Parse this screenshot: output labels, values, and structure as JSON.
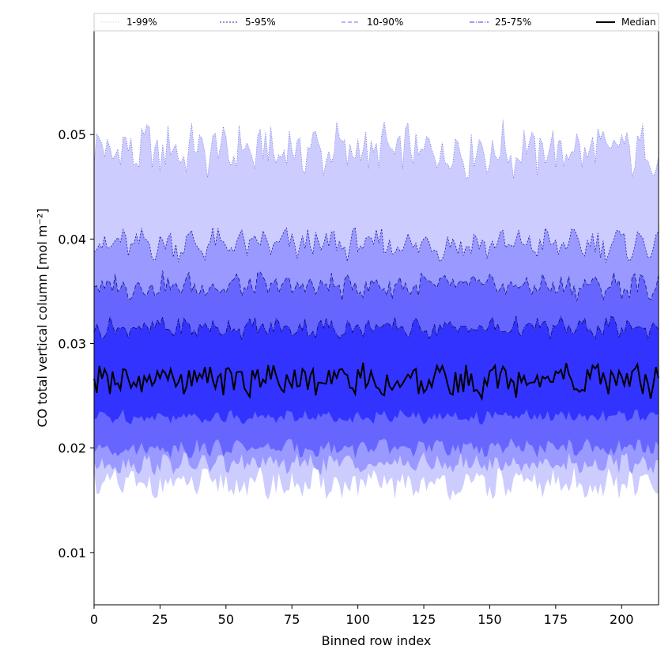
{
  "chart_data": {
    "type": "area",
    "title": "",
    "xlabel": "Binned row index",
    "ylabel": "CO total vertical column [mol m⁻²]",
    "xlim": [
      0,
      214
    ],
    "ylim": [
      0.005,
      0.06
    ],
    "x_ticks": [
      0,
      25,
      50,
      75,
      100,
      125,
      150,
      175,
      200
    ],
    "y_ticks": [
      0.01,
      0.02,
      0.03,
      0.04,
      0.05
    ],
    "x_tick_labels": [
      "0",
      "25",
      "50",
      "75",
      "100",
      "125",
      "150",
      "175",
      "200"
    ],
    "y_tick_labels": [
      "0.01",
      "0.02",
      "0.03",
      "0.04",
      "0.05"
    ],
    "grid": false,
    "legend_placement": "top",
    "legend": [
      {
        "label": "1-99%",
        "color": "#c8c8f8",
        "style": "dotted"
      },
      {
        "label": "5-95%",
        "color": "#2a2aa8",
        "style": "dotted"
      },
      {
        "label": "10-90%",
        "color": "#6c6cf0",
        "style": "dashed"
      },
      {
        "label": "25-75%",
        "color": "#3a3ae0",
        "style": "dashdot"
      },
      {
        "label": "Median",
        "color": "#000000",
        "style": "solid"
      }
    ],
    "bands": [
      {
        "name": "1-99%",
        "fill": "#ccccff",
        "line": "#6b6bd8",
        "mean_low": 0.0165,
        "mean_high": 0.0485,
        "amp_low": 0.0018,
        "amp_high": 0.003
      },
      {
        "name": "5-95%",
        "fill": "#9999ff",
        "line": "#1a1a9a",
        "mean_low": 0.0185,
        "mean_high": 0.0395,
        "amp_low": 0.0012,
        "amp_high": 0.0018
      },
      {
        "name": "10-90%",
        "fill": "#6666ff",
        "line": "#14147a",
        "mean_low": 0.02,
        "mean_high": 0.0355,
        "amp_low": 0.001,
        "amp_high": 0.0015
      },
      {
        "name": "25-75%",
        "fill": "#3333ff",
        "line": "#0a0a60",
        "mean_low": 0.023,
        "mean_high": 0.0315,
        "amp_low": 0.0008,
        "amp_high": 0.0012
      }
    ],
    "median": {
      "name": "Median",
      "color": "#000000",
      "mean": 0.0265,
      "amp": 0.0018
    },
    "x_start": 0,
    "x_end": 214,
    "x_step": 1
  }
}
